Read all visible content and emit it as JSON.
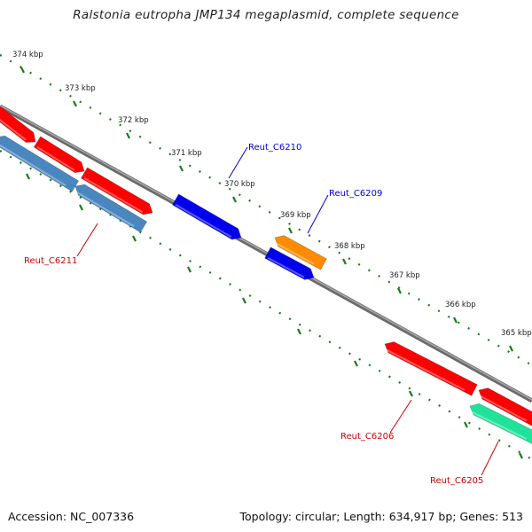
{
  "title": "Ralstonia eutropha JMP134 megaplasmid, complete sequence",
  "accession": "Accession: NC_007336",
  "summary": "Topology: circular; Length: 634,917 bp; Genes: 513",
  "ticks": [
    "374 kbp",
    "373 kbp",
    "372 kbp",
    "371 kbp",
    "370 kbp",
    "369 kbp",
    "368 kbp",
    "367 kbp",
    "366 kbp",
    "365 kbp"
  ],
  "genes": [
    {
      "name": "Reut_C6210",
      "color": "#0000cc"
    },
    {
      "name": "Reut_C6209",
      "color": "#0000cc"
    },
    {
      "name": "Reut_C6211",
      "color": "#cc0000"
    },
    {
      "name": "Reut_C6206",
      "color": "#cc0000"
    },
    {
      "name": "Reut_C6205",
      "color": "#cc0000"
    }
  ],
  "colors": {
    "red": "#ff0000",
    "steelblue": "#4a87c0",
    "blue": "#0000ee",
    "orange": "#ff8c00",
    "teal": "#1fe39a",
    "backbone": "#808080",
    "tick": "#1a7a1a"
  }
}
